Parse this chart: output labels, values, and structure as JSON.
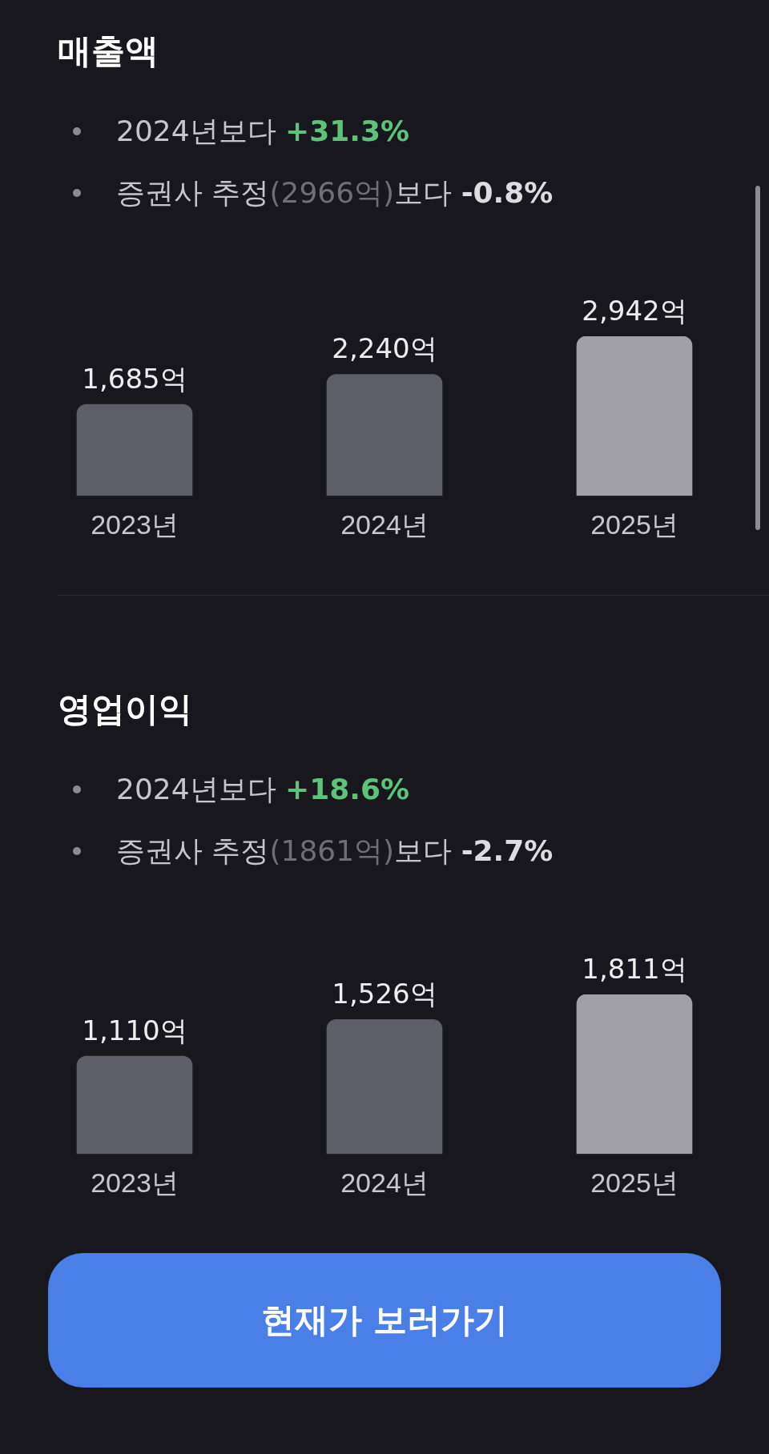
{
  "chart_data": [
    {
      "type": "bar",
      "title": "매출액",
      "annotations": [
        "2024년보다 +31.3%",
        "증권사 추정(2966억)보다 -0.8%"
      ],
      "categories": [
        "2023년",
        "2024년",
        "2025년"
      ],
      "values": [
        1685,
        2240,
        2942
      ],
      "value_labels": [
        "1,685억",
        "2,240억",
        "2,942억"
      ],
      "colors": [
        "#5e5e68",
        "#5e5e68",
        "#a0a0a6"
      ]
    },
    {
      "type": "bar",
      "title": "영업이익",
      "annotations": [
        "2024년보다 +18.6%",
        "증권사 추정(1861억)보다 -2.7%"
      ],
      "categories": [
        "2023년",
        "2024년",
        "2025년"
      ],
      "values": [
        1110,
        1526,
        1811
      ],
      "value_labels": [
        "1,110억",
        "1,526억",
        "1,811억"
      ],
      "colors": [
        "#5e5e68",
        "#5e5e68",
        "#a0a0a6"
      ]
    },
    {
      "type": "other",
      "annotations": [
        "현재가 보러가기"
      ]
    }
  ]
}
